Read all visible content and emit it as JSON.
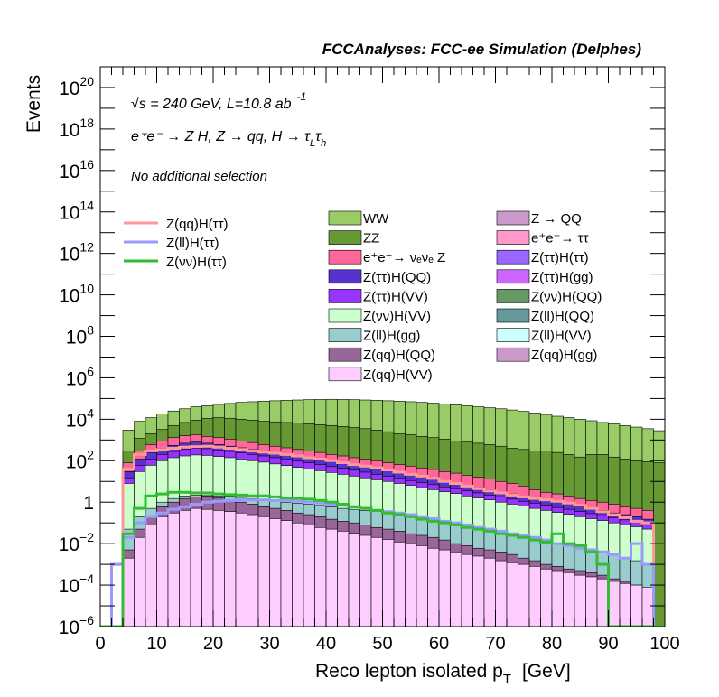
{
  "header": {
    "title": "FCCAnalyses: FCC-ee Simulation (Delphes)"
  },
  "annotations": {
    "energy": "√s = 240 GeV, L=10.8 ab",
    "lumi_exp": "-1",
    "process": "e⁺e⁻ → Z H, Z → qq, H → τ",
    "tau1_sub": "L",
    "tau2": "τ",
    "tau2_sub": "h",
    "selection": "No additional selection"
  },
  "chart_data": {
    "type": "bar",
    "title": "FCCAnalyses: FCC-ee Simulation (Delphes)",
    "xlabel": "Reco lepton isolated p",
    "xlabel_sub": "T",
    "xlabel_unit": "[GeV]",
    "ylabel": "Events",
    "xlim": [
      0,
      100
    ],
    "ylim": [
      1e-06,
      1e+21
    ],
    "y_scale": "log",
    "x_ticks": [
      0,
      10,
      20,
      30,
      40,
      50,
      60,
      70,
      80,
      90,
      100
    ],
    "y_ticks": [
      {
        "value": 1e-06,
        "base": "10",
        "exp": "−6"
      },
      {
        "value": 0.0001,
        "base": "10",
        "exp": "−4"
      },
      {
        "value": 0.01,
        "base": "10",
        "exp": "−2"
      },
      {
        "value": 1,
        "base": "1",
        "exp": ""
      },
      {
        "value": 100.0,
        "base": "10",
        "exp": "2"
      },
      {
        "value": 10000.0,
        "base": "10",
        "exp": "4"
      },
      {
        "value": 1000000.0,
        "base": "10",
        "exp": "6"
      },
      {
        "value": 100000000.0,
        "base": "10",
        "exp": "8"
      },
      {
        "value": 10000000000.0,
        "base": "10",
        "exp": "10"
      },
      {
        "value": 1000000000000.0,
        "base": "10",
        "exp": "12"
      },
      {
        "value": 100000000000000.0,
        "base": "10",
        "exp": "14"
      },
      {
        "value": 1e+16,
        "base": "10",
        "exp": "16"
      },
      {
        "value": 1e+18,
        "base": "10",
        "exp": "18"
      },
      {
        "value": 1e+20,
        "base": "10",
        "exp": "20"
      }
    ],
    "bin_width": 2,
    "stacked_layers": [
      {
        "name": "WW",
        "color": "#99cc66",
        "total": [
          0,
          0,
          3000,
          8000,
          12000,
          18000,
          25000,
          32000,
          40000,
          45000,
          52000,
          58000,
          65000,
          70000,
          75000,
          78000,
          82000,
          85000,
          88000,
          90000,
          92000,
          90000,
          88000,
          85000,
          82000,
          78000,
          74000,
          70000,
          65000,
          60000,
          55000,
          50000,
          45000,
          40000,
          36000,
          32000,
          28000,
          24000,
          20000,
          17000,
          14000,
          12000,
          10000,
          8500,
          7000,
          6000,
          5000,
          4200,
          3500,
          2800
        ]
      },
      {
        "name": "ZZ",
        "color": "#669933",
        "total": [
          0,
          0,
          300,
          1200,
          2000,
          3200,
          5000,
          7000,
          9000,
          11000,
          12000,
          11000,
          10000,
          9000,
          8000,
          7500,
          7000,
          6500,
          6000,
          5500,
          5000,
          4500,
          4000,
          3500,
          3000,
          2500,
          2000,
          1800,
          1500,
          1300,
          1100,
          900,
          800,
          700,
          600,
          500,
          400,
          350,
          300,
          300,
          250,
          200,
          150,
          200,
          200,
          150,
          120,
          100,
          90,
          80
        ]
      },
      {
        "name": "e⁺e⁻→ νₑνₑ Z",
        "color": "#ff6699",
        "total": [
          0,
          0,
          80,
          300,
          600,
          900,
          1300,
          1600,
          1800,
          1500,
          1300,
          1100,
          900,
          750,
          600,
          500,
          420,
          350,
          300,
          250,
          200,
          170,
          140,
          120,
          100,
          80,
          65,
          55,
          45,
          38,
          30,
          25,
          20,
          16,
          13,
          10,
          8,
          6,
          4,
          3,
          2.5,
          2,
          1.5,
          1.2,
          1,
          0.8,
          0.6,
          0.5,
          0.4,
          0
        ]
      },
      {
        "name": "Z(ττ)H(QQ)",
        "color": "#5533cc",
        "total": [
          0,
          0,
          30,
          120,
          250,
          400,
          550,
          700,
          800,
          700,
          600,
          500,
          420,
          350,
          300,
          250,
          200,
          170,
          140,
          110,
          90,
          75,
          60,
          50,
          40,
          32,
          26,
          20,
          16,
          13,
          10,
          8,
          6,
          5,
          4,
          3,
          2.5,
          2,
          1.5,
          1.2,
          1,
          0.8,
          0.6,
          0.5,
          0.4,
          0.3,
          0.25,
          0.2,
          0.15,
          0
        ]
      },
      {
        "name": "Z(ττ)H(VV)",
        "color": "#9933ff",
        "total": [
          0,
          0,
          15,
          60,
          120,
          200,
          280,
          350,
          400,
          380,
          330,
          280,
          240,
          200,
          170,
          140,
          115,
          95,
          80,
          65,
          52,
          43,
          35,
          28,
          22,
          18,
          14,
          11,
          9,
          7,
          5.5,
          4.5,
          3.5,
          2.8,
          2.2,
          1.8,
          1.4,
          1.1,
          0.9,
          0.7,
          0.55,
          0.45,
          0.35,
          0.28,
          0.22,
          0.18,
          0.14,
          0.11,
          0.09,
          0
        ]
      },
      {
        "name": "Z(νν)H(VV)",
        "color": "#ccffcc",
        "total": [
          0,
          0,
          8,
          30,
          60,
          100,
          140,
          170,
          190,
          180,
          160,
          140,
          120,
          100,
          85,
          70,
          58,
          48,
          40,
          33,
          27,
          22,
          18,
          15,
          12,
          10,
          8,
          6.5,
          5,
          4,
          3.2,
          2.6,
          2,
          1.6,
          1.3,
          1,
          0.8,
          0.65,
          0.5,
          0.4,
          0.32,
          0.26,
          0.2,
          0.16,
          0.13,
          0.1,
          0.08,
          0.065,
          0.05,
          0
        ]
      },
      {
        "name": "Z(ll)H(gg)",
        "color": "#99cccc",
        "total": [
          0,
          0,
          0.05,
          0.2,
          0.5,
          1,
          1.5,
          2,
          2.2,
          2.1,
          2,
          1.9,
          1.7,
          1.5,
          1.3,
          1.2,
          1,
          0.9,
          0.8,
          0.7,
          0.6,
          0.5,
          0.45,
          0.4,
          0.35,
          0.3,
          0.25,
          0.22,
          0.18,
          0.15,
          0.12,
          0.1,
          0.08,
          0.065,
          0.05,
          0.04,
          0.03,
          0.025,
          0.02,
          0.015,
          0.01,
          0.008,
          0.006,
          0.005,
          0.004,
          0.003,
          0.002,
          0.0015,
          0.001,
          0
        ]
      },
      {
        "name": "Z(qq)H(QQ)",
        "color": "#996699",
        "total": [
          0,
          0,
          0.005,
          0.05,
          0.2,
          0.6,
          1,
          1.5,
          1.8,
          2,
          1.6,
          1.2,
          1,
          0.8,
          0.6,
          0.5,
          0.4,
          0.3,
          0.25,
          0.2,
          0.15,
          0.12,
          0.1,
          0.08,
          0.06,
          0.05,
          0.04,
          0.03,
          0.025,
          0.02,
          0.015,
          0.01,
          0.008,
          0.006,
          0.005,
          0.004,
          0.003,
          0.002,
          0.0015,
          0.001,
          0.0008,
          0.0006,
          0.0005,
          0.0004,
          0.0003,
          0.0002,
          0.00015,
          0.0001,
          8e-05,
          0
        ]
      },
      {
        "name": "Z(qq)H(VV)",
        "color": "#ffccff",
        "total": [
          0,
          0,
          0.002,
          0.02,
          0.08,
          0.2,
          0.3,
          0.4,
          0.5,
          0.45,
          0.4,
          0.35,
          0.3,
          0.25,
          0.2,
          0.16,
          0.13,
          0.1,
          0.08,
          0.06,
          0.05,
          0.04,
          0.032,
          0.025,
          0.02,
          0.016,
          0.012,
          0.01,
          0.008,
          0.006,
          0.005,
          0.004,
          0.003,
          0.0025,
          0.002,
          0.0015,
          0.0012,
          0.001,
          0.0008,
          0.0006,
          0.0005,
          0.0004,
          0.0003,
          0.00025,
          0.0002,
          0.00015,
          0.00012,
          0.0001,
          8e-05,
          0
        ]
      }
    ],
    "overlay_series": [
      {
        "name": "Z(qq)H(ττ)",
        "color": "#ff9999",
        "values": [
          0,
          0.001,
          40,
          200,
          300,
          350,
          400,
          450,
          480,
          500,
          450,
          400,
          350,
          300,
          260,
          230,
          200,
          170,
          140,
          120,
          100,
          80,
          65,
          55,
          45,
          36,
          28,
          22,
          18,
          14,
          10,
          8,
          6,
          4.5,
          3.5,
          2.8,
          2.2,
          1.8,
          1.5,
          1.3,
          1.1,
          0.9,
          0.7,
          0.5,
          0.35,
          0.25,
          0.18,
          0.12,
          0.1,
          0
        ]
      },
      {
        "name": "Z(ll)H(ττ)",
        "color": "#9999ff",
        "values": [
          0,
          0.001,
          0.02,
          0.1,
          0.2,
          0.3,
          0.45,
          0.6,
          0.8,
          1,
          1.1,
          1.2,
          1.3,
          1.3,
          1.3,
          1.2,
          1.2,
          1.1,
          1,
          0.9,
          0.8,
          0.7,
          0.6,
          0.5,
          0.4,
          0.35,
          0.3,
          0.25,
          0.2,
          0.16,
          0.12,
          0.1,
          0.08,
          0.06,
          0.05,
          0.04,
          0.03,
          0.025,
          0.02,
          0.015,
          0.01,
          0.008,
          0.006,
          0.005,
          0.004,
          0.003,
          0.002,
          0.01,
          0.001,
          0
        ]
      },
      {
        "name": "Z(νν)H(ττ)",
        "color": "#33bb33",
        "values": [
          0,
          1e-06,
          0.03,
          0.5,
          2,
          2.5,
          3,
          3,
          2.8,
          2.8,
          2.5,
          2.3,
          2.2,
          2,
          2,
          1.8,
          1.6,
          1.5,
          1.4,
          1.2,
          1,
          0.8,
          0.6,
          0.5,
          0.4,
          0.3,
          0.25,
          0.2,
          0.15,
          0.12,
          0.1,
          0.08,
          0.06,
          0.05,
          0.04,
          0.03,
          0.025,
          0.02,
          0.015,
          0.012,
          0.03,
          0.01,
          0.008,
          0.004,
          0.001,
          1e-06,
          1e-06,
          1e-06,
          1e-06,
          0
        ]
      }
    ],
    "legend": {
      "left": [
        {
          "label": "Z(qq)H(ττ)",
          "color": "#ff9999"
        },
        {
          "label": "Z(ll)H(ττ)",
          "color": "#9999ff"
        },
        {
          "label": "Z(νν)H(ττ)",
          "color": "#33bb33"
        }
      ],
      "middle": [
        {
          "label": "WW",
          "color": "#99cc66"
        },
        {
          "label": "ZZ",
          "color": "#669933"
        },
        {
          "label": "e⁺e⁻→ νₑνₑ Z",
          "color": "#ff6699"
        },
        {
          "label": "Z(ττ)H(QQ)",
          "color": "#5533cc"
        },
        {
          "label": "Z(ττ)H(VV)",
          "color": "#9933ff"
        },
        {
          "label": "Z(νν)H(VV)",
          "color": "#ccffcc"
        },
        {
          "label": "Z(ll)H(gg)",
          "color": "#99cccc"
        },
        {
          "label": "Z(qq)H(QQ)",
          "color": "#996699"
        },
        {
          "label": "Z(qq)H(VV)",
          "color": "#ffccff"
        }
      ],
      "right": [
        {
          "label": "Z → QQ",
          "color": "#cc99cc"
        },
        {
          "label": "e⁺e⁻→ ττ",
          "color": "#ff99cc"
        },
        {
          "label": "Z(ττ)H(ττ)",
          "color": "#9966ff"
        },
        {
          "label": "Z(ττ)H(gg)",
          "color": "#cc66ff"
        },
        {
          "label": "Z(νν)H(QQ)",
          "color": "#669966"
        },
        {
          "label": "Z(ll)H(QQ)",
          "color": "#669999"
        },
        {
          "label": "Z(ll)H(VV)",
          "color": "#ccffff"
        },
        {
          "label": "Z(qq)H(gg)",
          "color": "#cc99cc"
        }
      ]
    }
  }
}
